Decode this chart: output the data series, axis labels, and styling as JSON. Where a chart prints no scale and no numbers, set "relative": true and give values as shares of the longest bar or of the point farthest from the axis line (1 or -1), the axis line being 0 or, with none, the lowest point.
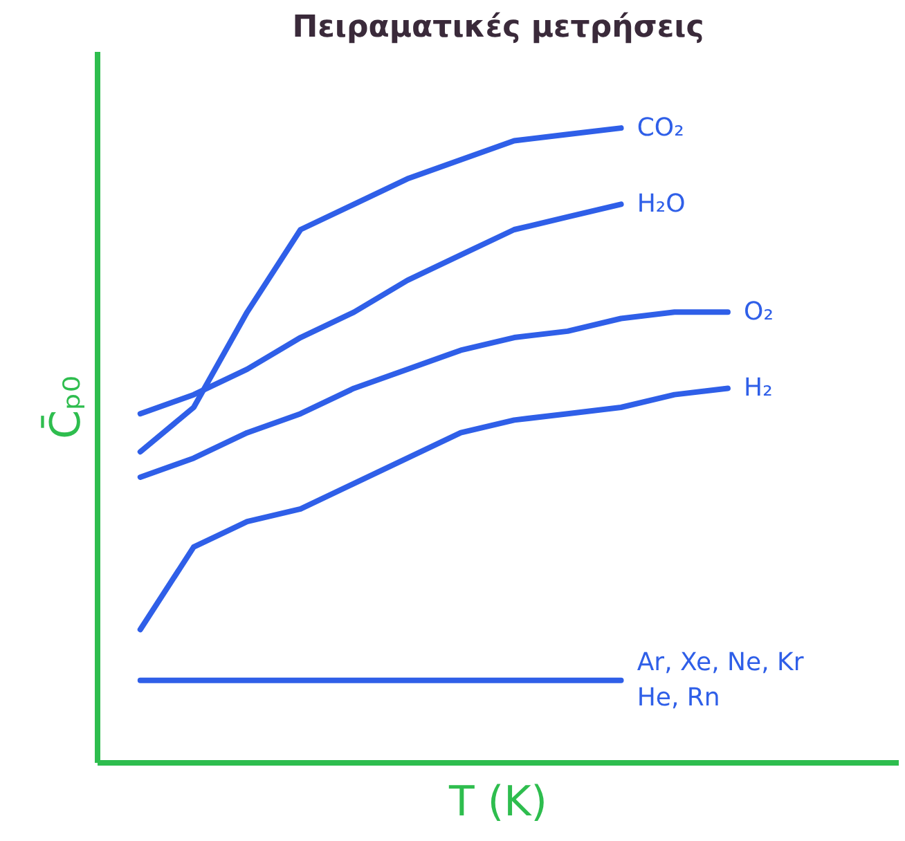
{
  "chart_data": {
    "type": "line",
    "title": "Πειραματικές μετρήσεις",
    "xlabel": "T (K)",
    "ylabel": "C̄ₚ₀",
    "relative": true,
    "grid": false,
    "marker": "none",
    "line_style": "solid",
    "categories": [
      null,
      null,
      null,
      null,
      null,
      null,
      null,
      null,
      null,
      null,
      null,
      null
    ],
    "series": [
      {
        "name": "CO₂",
        "color": "#2f5fe8",
        "values": [
          0.49,
          0.56,
          0.71,
          0.84,
          0.88,
          0.92,
          0.95,
          0.98,
          0.99,
          1.0,
          null,
          null
        ]
      },
      {
        "name": "H₂O",
        "color": "#2f5fe8",
        "values": [
          0.55,
          0.58,
          0.62,
          0.67,
          0.71,
          0.76,
          0.8,
          0.84,
          0.86,
          0.88,
          null,
          null
        ]
      },
      {
        "name": "O₂",
        "color": "#2f5fe8",
        "values": [
          0.45,
          0.48,
          0.52,
          0.55,
          0.59,
          0.62,
          0.65,
          0.67,
          0.68,
          0.7,
          0.71,
          0.71
        ]
      },
      {
        "name": "H₂",
        "color": "#2f5fe8",
        "values": [
          0.21,
          0.34,
          0.38,
          0.4,
          0.44,
          0.48,
          0.52,
          0.54,
          0.55,
          0.56,
          0.58,
          0.59
        ]
      },
      {
        "name": "Ar, Xe, Ne, Kr\nHe, Rn",
        "color": "#2f5fe8",
        "values": [
          0.13,
          0.13,
          0.13,
          0.13,
          0.13,
          0.13,
          0.13,
          0.13,
          0.13,
          0.13,
          null,
          null
        ]
      }
    ]
  }
}
